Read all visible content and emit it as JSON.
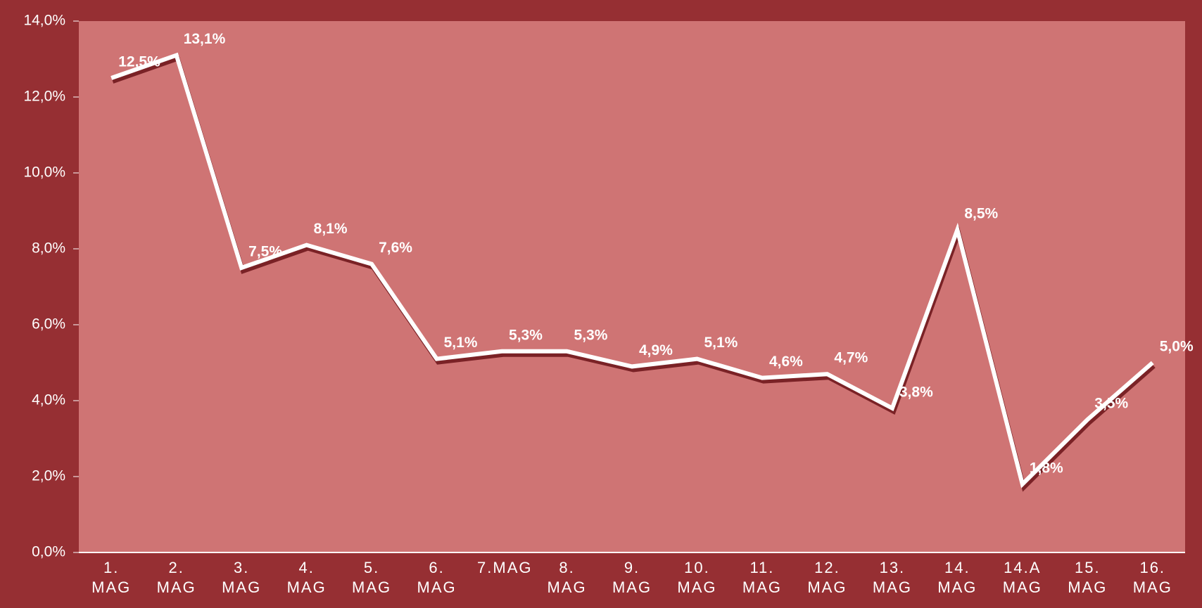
{
  "chart_data": {
    "type": "line",
    "categories": [
      "1. MAG",
      "2. MAG",
      "3. MAG",
      "4. MAG",
      "5. MAG",
      "6. MAG",
      "7.MAG",
      "8. MAG",
      "9. MAG",
      "10. MAG",
      "11. MAG",
      "12. MAG",
      "13. MAG",
      "14. MAG",
      "14.A MAG",
      "15. MAG",
      "16. MAG"
    ],
    "values": [
      12.5,
      13.1,
      7.5,
      8.1,
      7.6,
      5.1,
      5.3,
      5.3,
      4.9,
      5.1,
      4.6,
      4.7,
      3.8,
      8.5,
      1.8,
      3.5,
      5.0
    ],
    "value_labels": [
      "12,5%",
      "13,1%",
      "7,5%",
      "8,1%",
      "7,6%",
      "5,1%",
      "5,3%",
      "5,3%",
      "4,9%",
      "5,1%",
      "4,6%",
      "4,7%",
      "3,8%",
      "8,5%",
      "1,8%",
      "3,5%",
      "5,0%"
    ],
    "color": "#ffffff",
    "ylim": [
      0,
      14
    ],
    "yticks": [
      {
        "value": 0,
        "label": "0,0%"
      },
      {
        "value": 2,
        "label": "2,0%"
      },
      {
        "value": 4,
        "label": "4,0%"
      },
      {
        "value": 6,
        "label": "6,0%"
      },
      {
        "value": 8,
        "label": "8,0%"
      },
      {
        "value": 10,
        "label": "10,0%"
      },
      {
        "value": 12,
        "label": "12,0%"
      },
      {
        "value": 14,
        "label": "14,0%"
      }
    ]
  }
}
